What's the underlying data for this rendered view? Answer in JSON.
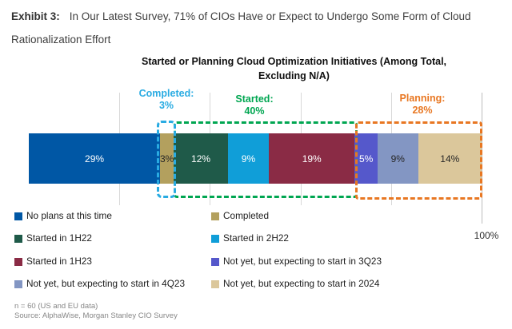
{
  "header": {
    "exhibit_label": "Exhibit 3:",
    "text": "In Our Latest Survey, 71% of CIOs Have or Expect to Undergo Some Form of Cloud Rationalization Effort"
  },
  "chart": {
    "title_line1": "Started or Planning Cloud Optimization Initiatives (Among Total,",
    "title_line2": "Excluding N/A)"
  },
  "chart_data": {
    "type": "bar",
    "orientation": "horizontal",
    "stacked": true,
    "title": "Started or Planning Cloud Optimization Initiatives (Among Total, Excluding N/A)",
    "xlim": [
      0,
      100
    ],
    "gridline_percents": [
      20,
      40,
      60,
      80,
      100
    ],
    "axis_max_label": "100%",
    "legend_position": "bottom",
    "segments": [
      {
        "label": "No plans at this time",
        "value": 29,
        "display": "29%",
        "color": "#0057A5",
        "text_color": "#FFFFFF"
      },
      {
        "label": "Completed",
        "value": 3,
        "display": "3%",
        "color": "#B3A05E",
        "text_color": "#262626"
      },
      {
        "label": "Started in 1H22",
        "value": 12,
        "display": "12%",
        "color": "#1F5A49",
        "text_color": "#FFFFFF"
      },
      {
        "label": "Started in 2H22",
        "value": 9,
        "display": "9%",
        "color": "#109ED8",
        "text_color": "#FFFFFF"
      },
      {
        "label": "Started in 1H23",
        "value": 19,
        "display": "19%",
        "color": "#8A2B45",
        "text_color": "#FFFFFF"
      },
      {
        "label": "Not yet, but expecting to start in 3Q23",
        "value": 5,
        "display": "5%",
        "color": "#5558CB",
        "text_color": "#FFFFFF"
      },
      {
        "label": "Not yet, but expecting to start in 4Q23",
        "value": 9,
        "display": "9%",
        "color": "#8396C3",
        "text_color": "#262626"
      },
      {
        "label": "Not yet, but expecting to start in 2024",
        "value": 14,
        "display": "14%",
        "color": "#DBC79B",
        "text_color": "#262626"
      }
    ],
    "group_annotations": [
      {
        "label": "Completed:",
        "value": 3,
        "display": "3%",
        "color": "#29ABE2",
        "span_segments": [
          "Completed"
        ]
      },
      {
        "label": "Started:",
        "value": 40,
        "display": "40%",
        "color": "#00A651",
        "span_segments": [
          "Started in 1H22",
          "Started in 2H22",
          "Started in 1H23"
        ]
      },
      {
        "label": "Planning:",
        "value": 28,
        "display": "28%",
        "color": "#E87722",
        "span_segments": [
          "Not yet, but expecting to start in 3Q23",
          "Not yet, but expecting to start in 4Q23",
          "Not yet, but expecting to start in 2024"
        ]
      }
    ]
  },
  "footer": {
    "note": "n = 60 (US and EU data)",
    "source": "Source: AlphaWise, Morgan Stanley CIO Survey"
  }
}
